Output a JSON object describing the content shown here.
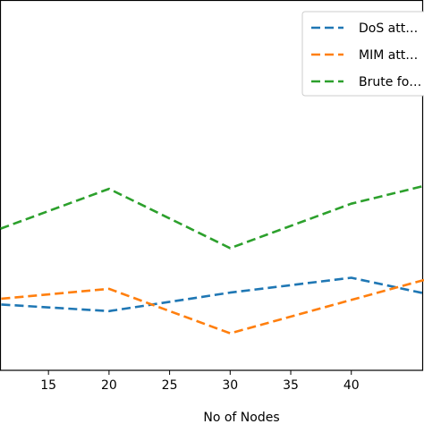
{
  "chart_data": {
    "type": "line",
    "xlabel": "No of Nodes",
    "ylabel": "",
    "x": [
      10,
      20,
      30,
      40,
      50
    ],
    "xticks": [
      15,
      20,
      25,
      30,
      35,
      40
    ],
    "xlim": [
      11,
      46
    ],
    "ylim": [
      0,
      1
    ],
    "grid": false,
    "legend_position": "top-right",
    "series": [
      {
        "name": "DoS att…",
        "color": "#1f77b4",
        "values": [
          0.18,
          0.16,
          0.21,
          0.25,
          0.18
        ]
      },
      {
        "name": "MIM att…",
        "color": "#ff7f0e",
        "values": [
          0.19,
          0.22,
          0.1,
          0.19,
          0.28
        ]
      },
      {
        "name": "Brute fo…",
        "color": "#2ca02c",
        "values": [
          0.37,
          0.49,
          0.33,
          0.45,
          0.53
        ]
      }
    ]
  }
}
